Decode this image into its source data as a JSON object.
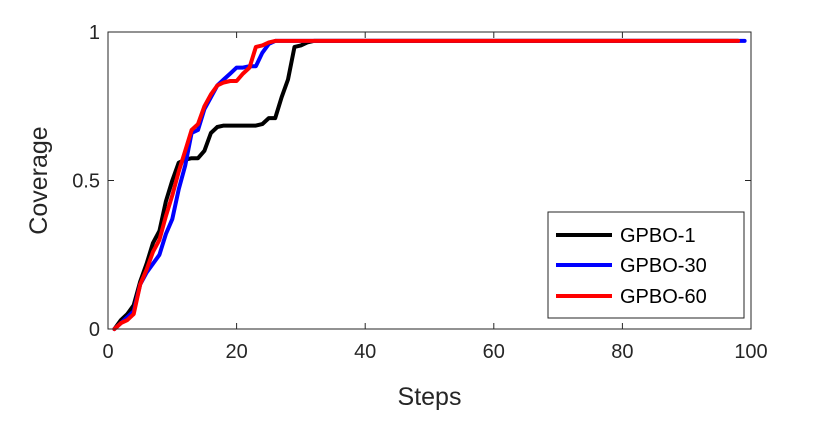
{
  "chart_data": {
    "type": "line",
    "xlabel": "Steps",
    "ylabel": "Coverage",
    "xlim": [
      0,
      100
    ],
    "ylim": [
      0,
      1
    ],
    "xticks": [
      0,
      20,
      40,
      60,
      80,
      100
    ],
    "xtick_labels": [
      "0",
      "20",
      "40",
      "60",
      "80",
      "100"
    ],
    "yticks": [
      0,
      0.5,
      1
    ],
    "ytick_labels": [
      "0",
      "0.5",
      "1"
    ],
    "grid": false,
    "legend_position": "lower-right",
    "series": [
      {
        "name": "GPBO-1",
        "color": "#000000",
        "points": [
          [
            1,
            0
          ],
          [
            2,
            0.03
          ],
          [
            3,
            0.05
          ],
          [
            4,
            0.08
          ],
          [
            5,
            0.16
          ],
          [
            6,
            0.22
          ],
          [
            7,
            0.29
          ],
          [
            8,
            0.33
          ],
          [
            9,
            0.43
          ],
          [
            10,
            0.5
          ],
          [
            11,
            0.56
          ],
          [
            12,
            0.57
          ],
          [
            13,
            0.575
          ],
          [
            14,
            0.575
          ],
          [
            15,
            0.6
          ],
          [
            16,
            0.66
          ],
          [
            17,
            0.68
          ],
          [
            18,
            0.685
          ],
          [
            19,
            0.685
          ],
          [
            20,
            0.685
          ],
          [
            21,
            0.685
          ],
          [
            22,
            0.685
          ],
          [
            23,
            0.685
          ],
          [
            24,
            0.69
          ],
          [
            25,
            0.71
          ],
          [
            26,
            0.71
          ],
          [
            27,
            0.78
          ],
          [
            28,
            0.84
          ],
          [
            29,
            0.95
          ],
          [
            30,
            0.955
          ],
          [
            31,
            0.965
          ],
          [
            32,
            0.97
          ],
          [
            40,
            0.97
          ],
          [
            50,
            0.97
          ],
          [
            60,
            0.97
          ],
          [
            70,
            0.97
          ],
          [
            80,
            0.97
          ],
          [
            90,
            0.97
          ],
          [
            98,
            0.97
          ]
        ]
      },
      {
        "name": "GPBO-30",
        "color": "#0000ff",
        "points": [
          [
            1,
            0
          ],
          [
            2,
            0.02
          ],
          [
            3,
            0.04
          ],
          [
            4,
            0.06
          ],
          [
            5,
            0.15
          ],
          [
            6,
            0.19
          ],
          [
            7,
            0.22
          ],
          [
            8,
            0.25
          ],
          [
            9,
            0.32
          ],
          [
            10,
            0.37
          ],
          [
            11,
            0.47
          ],
          [
            12,
            0.55
          ],
          [
            13,
            0.66
          ],
          [
            14,
            0.67
          ],
          [
            15,
            0.74
          ],
          [
            16,
            0.78
          ],
          [
            17,
            0.82
          ],
          [
            18,
            0.84
          ],
          [
            19,
            0.86
          ],
          [
            20,
            0.88
          ],
          [
            21,
            0.88
          ],
          [
            22,
            0.885
          ],
          [
            23,
            0.885
          ],
          [
            24,
            0.93
          ],
          [
            25,
            0.96
          ],
          [
            26,
            0.97
          ],
          [
            30,
            0.97
          ],
          [
            40,
            0.97
          ],
          [
            50,
            0.97
          ],
          [
            60,
            0.97
          ],
          [
            70,
            0.97
          ],
          [
            80,
            0.97
          ],
          [
            90,
            0.97
          ],
          [
            99,
            0.97
          ]
        ]
      },
      {
        "name": "GPBO-60",
        "color": "#ff0000",
        "points": [
          [
            1,
            0
          ],
          [
            2,
            0.02
          ],
          [
            3,
            0.03
          ],
          [
            4,
            0.05
          ],
          [
            5,
            0.15
          ],
          [
            6,
            0.2
          ],
          [
            7,
            0.26
          ],
          [
            8,
            0.3
          ],
          [
            9,
            0.38
          ],
          [
            10,
            0.45
          ],
          [
            11,
            0.53
          ],
          [
            12,
            0.6
          ],
          [
            13,
            0.67
          ],
          [
            14,
            0.69
          ],
          [
            15,
            0.75
          ],
          [
            16,
            0.79
          ],
          [
            17,
            0.82
          ],
          [
            18,
            0.83
          ],
          [
            19,
            0.835
          ],
          [
            20,
            0.835
          ],
          [
            21,
            0.86
          ],
          [
            22,
            0.88
          ],
          [
            23,
            0.95
          ],
          [
            24,
            0.955
          ],
          [
            25,
            0.965
          ],
          [
            26,
            0.97
          ],
          [
            30,
            0.97
          ],
          [
            40,
            0.97
          ],
          [
            50,
            0.97
          ],
          [
            60,
            0.97
          ],
          [
            70,
            0.97
          ],
          [
            80,
            0.97
          ],
          [
            90,
            0.97
          ],
          [
            98,
            0.97
          ]
        ]
      }
    ]
  }
}
